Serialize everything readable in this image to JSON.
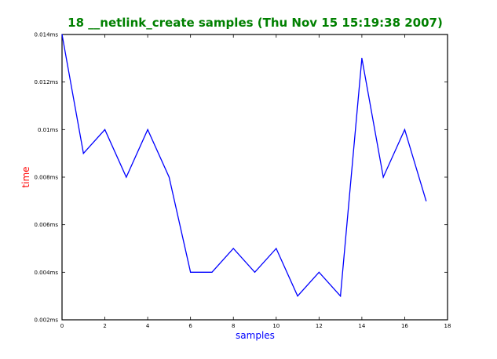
{
  "chart_data": {
    "type": "line",
    "title": "18 __netlink_create samples (Thu Nov 15 15:19:38 2007)",
    "xlabel": "samples",
    "ylabel": "time",
    "xlim": [
      0,
      18
    ],
    "ylim": [
      0.002,
      0.014
    ],
    "x_ticks": [
      0,
      2,
      4,
      6,
      8,
      10,
      12,
      14,
      16,
      18
    ],
    "x_tick_labels": [
      "0",
      "2",
      "4",
      "6",
      "8",
      "10",
      "12",
      "14",
      "16",
      "18"
    ],
    "y_ticks": [
      0.002,
      0.004,
      0.006,
      0.008,
      0.01,
      0.012,
      0.014
    ],
    "y_tick_labels": [
      "0.002ms",
      "0.004ms",
      "0.006ms",
      "0.008ms",
      "0.01ms",
      "0.012ms",
      "0.014ms"
    ],
    "grid": false,
    "series": [
      {
        "color": "#0000ff",
        "x": [
          0,
          1,
          2,
          3,
          4,
          5,
          6,
          7,
          8,
          9,
          10,
          11,
          12,
          13,
          14,
          15,
          16,
          17
        ],
        "values": [
          0.014,
          0.009,
          0.01,
          0.008,
          0.01,
          0.008,
          0.004,
          0.004,
          0.005,
          0.004,
          0.005,
          0.003,
          0.004,
          0.003,
          0.013,
          0.008,
          0.01,
          0.007
        ]
      }
    ],
    "colors": {
      "title": "#008000",
      "xlabel": "#0000ff",
      "ylabel": "#ff0000",
      "axes": "#000000"
    }
  }
}
